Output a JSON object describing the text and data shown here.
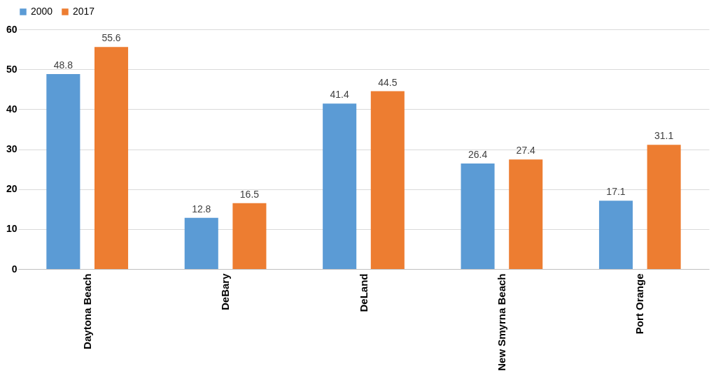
{
  "chart_data": {
    "type": "bar",
    "categories": [
      "Daytona Beach",
      "DeBary",
      "DeLand",
      "New Smyrna Beach",
      "Port Orange"
    ],
    "series": [
      {
        "name": "2000",
        "color": "#5b9bd5",
        "values": [
          48.8,
          12.8,
          41.4,
          26.4,
          17.1
        ]
      },
      {
        "name": "2017",
        "color": "#ed7d31",
        "values": [
          55.6,
          16.5,
          44.5,
          27.4,
          31.1
        ]
      }
    ],
    "ylim": [
      0,
      60
    ],
    "yticks": [
      0,
      10,
      20,
      30,
      40,
      50,
      60
    ],
    "grid": "y",
    "legend": "top",
    "data_labels": true
  }
}
